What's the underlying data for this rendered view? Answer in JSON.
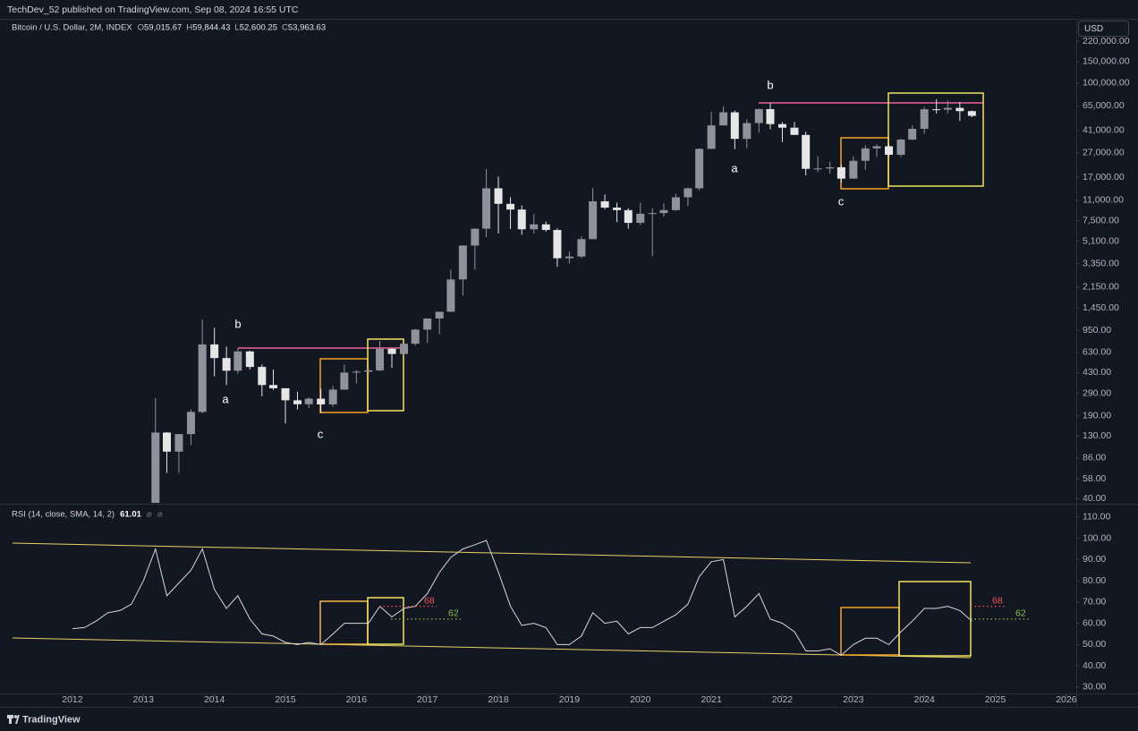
{
  "header": {
    "title": "TechDev_52 published on TradingView.com, Sep 08, 2024 16:55 UTC"
  },
  "currency": "USD",
  "footer": {
    "brand": "TradingView"
  },
  "chart_data": [
    {
      "type": "candlestick",
      "symbol": "Bitcoin / U.S. Dollar, 2M, INDEX",
      "ohlc_legend": [
        {
          "key": "O",
          "label": "59,015.67"
        },
        {
          "key": "H",
          "label": "59,844.43"
        },
        {
          "key": "L",
          "label": "52,600.25"
        },
        {
          "key": "C",
          "label": "53,963.63"
        }
      ],
      "log_scale": true,
      "up_color": "#8f929a",
      "down_color": "#e6e6e6",
      "xlim": [
        2010.98,
        2026.14
      ],
      "ylim": [
        37,
        330000
      ],
      "yticks": [
        {
          "value": 220000,
          "label": "220,000.00"
        },
        {
          "value": 150000,
          "label": "150,000.00"
        },
        {
          "value": 100000,
          "label": "100,000.00"
        },
        {
          "value": 65000,
          "label": "65,000.00"
        },
        {
          "value": 41000,
          "label": "41,000.00"
        },
        {
          "value": 27000,
          "label": "27,000.00"
        },
        {
          "value": 17000,
          "label": "17,000.00"
        },
        {
          "value": 11000,
          "label": "11,000.00"
        },
        {
          "value": 7500,
          "label": "7,500.00"
        },
        {
          "value": 5100,
          "label": "5,100.00"
        },
        {
          "value": 3350,
          "label": "3,350.00"
        },
        {
          "value": 2150,
          "label": "2,150.00"
        },
        {
          "value": 1450,
          "label": "1,450.00"
        },
        {
          "value": 950,
          "label": "950.00"
        },
        {
          "value": 630,
          "label": "630.00"
        },
        {
          "value": 430,
          "label": "430.00"
        },
        {
          "value": 290,
          "label": "290.00"
        },
        {
          "value": 190,
          "label": "190.00"
        },
        {
          "value": 130,
          "label": "130.00"
        },
        {
          "value": 86,
          "label": "86.00"
        },
        {
          "value": 58,
          "label": "58.00"
        },
        {
          "value": 40,
          "label": "40.00"
        }
      ],
      "x": [
        2013.17,
        2013.33,
        2013.5,
        2013.67,
        2013.83,
        2014,
        2014.17,
        2014.33,
        2014.5,
        2014.67,
        2014.83,
        2015,
        2015.17,
        2015.33,
        2015.5,
        2015.67,
        2015.83,
        2016,
        2016.17,
        2016.33,
        2016.5,
        2016.67,
        2016.83,
        2017,
        2017.17,
        2017.33,
        2017.5,
        2017.67,
        2017.83,
        2018,
        2018.17,
        2018.33,
        2018.5,
        2018.67,
        2018.83,
        2019,
        2019.17,
        2019.33,
        2019.5,
        2019.67,
        2019.83,
        2020,
        2020.17,
        2020.33,
        2020.5,
        2020.67,
        2020.83,
        2021,
        2021.17,
        2021.33,
        2021.5,
        2021.67,
        2021.83,
        2022,
        2022.17,
        2022.33,
        2022.5,
        2022.67,
        2022.83,
        2023,
        2023.17,
        2023.33,
        2023.5,
        2023.67,
        2023.83,
        2024,
        2024.17,
        2024.33,
        2024.5,
        2024.67
      ],
      "open": [
        33,
        139,
        97,
        135,
        205,
        730,
        565,
        445,
        640,
        478,
        340,
        320,
        255,
        237,
        263,
        236,
        312,
        430,
        437,
        448,
        672,
        610,
        740,
        965,
        1190,
        1350,
        2480,
        4700,
        6450,
        13800,
        10300,
        9250,
        6380,
        7000,
        6300,
        3700,
        3820,
        5300,
        10800,
        9600,
        9150,
        7200,
        8550,
        8650,
        9150,
        11650,
        13800,
        29000,
        45100,
        57700,
        35000,
        47100,
        61300,
        46200,
        43200,
        37700,
        19900,
        20050,
        20500,
        16550,
        23150,
        29250,
        30450,
        25950,
        34500,
        42300,
        61100,
        60650,
        62700,
        59015.67
      ],
      "high": [
        266,
        140,
        135,
        215,
        1163,
        1000,
        700,
        680,
        650,
        500,
        455,
        320,
        300,
        270,
        318,
        335,
        500,
        450,
        465,
        780,
        680,
        740,
        980,
        1190,
        1350,
        2980,
        4700,
        6450,
        19800,
        17200,
        11700,
        10000,
        8500,
        7400,
        6500,
        4200,
        5600,
        13900,
        12300,
        10500,
        9500,
        10500,
        9450,
        10400,
        12450,
        14000,
        29300,
        58300,
        64800,
        59600,
        50500,
        62000,
        69000,
        48000,
        48200,
        40000,
        25200,
        22700,
        21500,
        25200,
        31000,
        31400,
        31800,
        35200,
        45000,
        64000,
        73800,
        72000,
        70000,
        59844.43
      ],
      "low": [
        33,
        65,
        65,
        110,
        200,
        400,
        340,
        420,
        455,
        275,
        310,
        165,
        215,
        220,
        200,
        225,
        310,
        350,
        410,
        440,
        470,
        590,
        715,
        750,
        890,
        1350,
        1830,
        2980,
        5500,
        5900,
        6400,
        5750,
        5880,
        6100,
        3150,
        3350,
        3700,
        5300,
        9300,
        7300,
        6450,
        6900,
        3850,
        8100,
        9000,
        9850,
        13200,
        28800,
        45000,
        28800,
        29300,
        39600,
        42000,
        32900,
        37700,
        17600,
        18700,
        18150,
        15450,
        16500,
        19600,
        24800,
        25200,
        24900,
        34100,
        38500,
        56500,
        56500,
        49000,
        52600.25
      ],
      "close": [
        139,
        97,
        135,
        205,
        730,
        565,
        445,
        640,
        478,
        340,
        320,
        255,
        237,
        263,
        236,
        312,
        430,
        437,
        448,
        672,
        610,
        740,
        965,
        1190,
        1350,
        2480,
        4700,
        6450,
        13800,
        10300,
        9250,
        6380,
        7000,
        6300,
        3700,
        3820,
        5300,
        10800,
        9600,
        9150,
        7200,
        8550,
        8650,
        9150,
        11650,
        13800,
        29000,
        45100,
        57700,
        35000,
        47100,
        61300,
        46200,
        43200,
        37700,
        19900,
        20050,
        20500,
        16550,
        23150,
        29250,
        30450,
        25950,
        34500,
        42300,
        61100,
        60650,
        62700,
        59000,
        53963.63
      ],
      "annotations": [
        "a",
        "b",
        "c",
        "a",
        "b",
        "c"
      ]
    },
    {
      "type": "line",
      "title": "RSI (14, close, SMA, 14, 2)",
      "color": "#d9d9d9",
      "xlim": [
        2010.98,
        2026.14
      ],
      "xticks": [
        2012,
        2013,
        2014,
        2015,
        2016,
        2017,
        2018,
        2019,
        2020,
        2021,
        2022,
        2023,
        2024,
        2025,
        2026
      ],
      "ylim": [
        27,
        115
      ],
      "yticks": [
        {
          "value": 110,
          "label": "110.00"
        },
        {
          "value": 100,
          "label": "100.00"
        },
        {
          "value": 90,
          "label": "90.00"
        },
        {
          "value": 80,
          "label": "80.00"
        },
        {
          "value": 70,
          "label": "70.00"
        },
        {
          "value": 60,
          "label": "60.00"
        },
        {
          "value": 50,
          "label": "50.00"
        },
        {
          "value": 40,
          "label": "40.00"
        },
        {
          "value": 30,
          "label": "30.00"
        }
      ],
      "x": [
        2012,
        2012.17,
        2012.33,
        2012.5,
        2012.67,
        2012.83,
        2013,
        2013.17,
        2013.33,
        2013.5,
        2013.67,
        2013.83,
        2014,
        2014.17,
        2014.33,
        2014.5,
        2014.67,
        2014.83,
        2015,
        2015.17,
        2015.33,
        2015.5,
        2015.67,
        2015.83,
        2016,
        2016.17,
        2016.33,
        2016.5,
        2016.67,
        2016.83,
        2017,
        2017.17,
        2017.33,
        2017.5,
        2017.67,
        2017.83,
        2018,
        2018.17,
        2018.33,
        2018.5,
        2018.67,
        2018.83,
        2019,
        2019.17,
        2019.33,
        2019.5,
        2019.67,
        2019.83,
        2020,
        2020.17,
        2020.33,
        2020.5,
        2020.67,
        2020.83,
        2021,
        2021.17,
        2021.33,
        2021.5,
        2021.67,
        2021.83,
        2022,
        2022.17,
        2022.33,
        2022.5,
        2022.67,
        2022.83,
        2023,
        2023.17,
        2023.33,
        2023.5,
        2023.67,
        2023.83,
        2024,
        2024.17,
        2024.33,
        2024.5,
        2024.67
      ],
      "values": [
        57.5,
        58,
        61,
        65,
        66,
        69,
        80,
        95,
        73,
        79,
        85,
        95,
        76,
        67,
        73,
        62,
        55,
        54,
        51,
        50,
        51,
        50,
        55,
        60,
        60,
        60,
        68,
        63,
        67,
        68,
        74,
        84,
        91,
        95,
        97,
        99,
        84,
        68,
        59,
        60,
        58,
        50,
        50,
        54,
        65,
        60,
        61,
        55,
        58,
        58,
        61,
        64,
        69,
        82,
        89,
        90,
        63,
        68,
        74,
        62,
        60,
        56,
        47,
        47,
        48,
        45,
        50,
        53,
        53,
        50,
        56,
        61,
        67,
        67,
        68,
        66,
        61.01
      ],
      "levels": [
        {
          "value": 68,
          "color": "#f0545a"
        },
        {
          "value": 62,
          "color": "#8bc34a"
        }
      ]
    }
  ]
}
